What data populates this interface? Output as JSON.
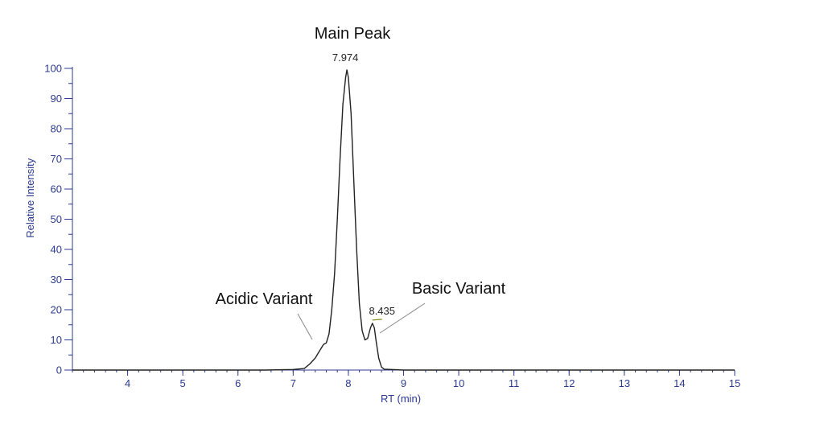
{
  "chart_data": {
    "type": "line",
    "xlabel": "RT (min)",
    "ylabel": "Relative Intensity",
    "xlim": [
      3,
      15
    ],
    "ylim": [
      0,
      100
    ],
    "x_ticks": [
      4,
      5,
      6,
      7,
      8,
      9,
      10,
      11,
      12,
      13,
      14,
      15
    ],
    "y_ticks": [
      0,
      10,
      20,
      30,
      40,
      50,
      60,
      70,
      80,
      90,
      100
    ],
    "grid": false,
    "series": [
      {
        "x": [
          3.0,
          6.5,
          7.0,
          7.2,
          7.3,
          7.4,
          7.5,
          7.55,
          7.6,
          7.65,
          7.7,
          7.75,
          7.8,
          7.85,
          7.9,
          7.95,
          7.974,
          8.0,
          8.05,
          8.1,
          8.15,
          8.2,
          8.25,
          8.3,
          8.35,
          8.4,
          8.435,
          8.47,
          8.5,
          8.55,
          8.6,
          8.65,
          9.0,
          15.0
        ],
        "y": [
          0,
          0,
          0.2,
          0.5,
          2,
          4,
          7,
          8.5,
          9,
          12,
          20,
          32,
          50,
          70,
          88,
          97,
          99.5,
          97,
          85,
          62,
          40,
          22,
          13,
          10,
          10.5,
          14,
          15.5,
          14,
          10,
          4,
          1,
          0.3,
          0,
          0
        ]
      }
    ],
    "peak_labels": [
      {
        "x": 7.974,
        "y": 99.5,
        "label": "7.974"
      },
      {
        "x": 8.435,
        "y": 15.5,
        "label": "8.435"
      }
    ],
    "annotations": [
      {
        "text": "Main Peak"
      },
      {
        "text": "Acidic Variant"
      },
      {
        "text": "Basic Variant"
      }
    ]
  }
}
